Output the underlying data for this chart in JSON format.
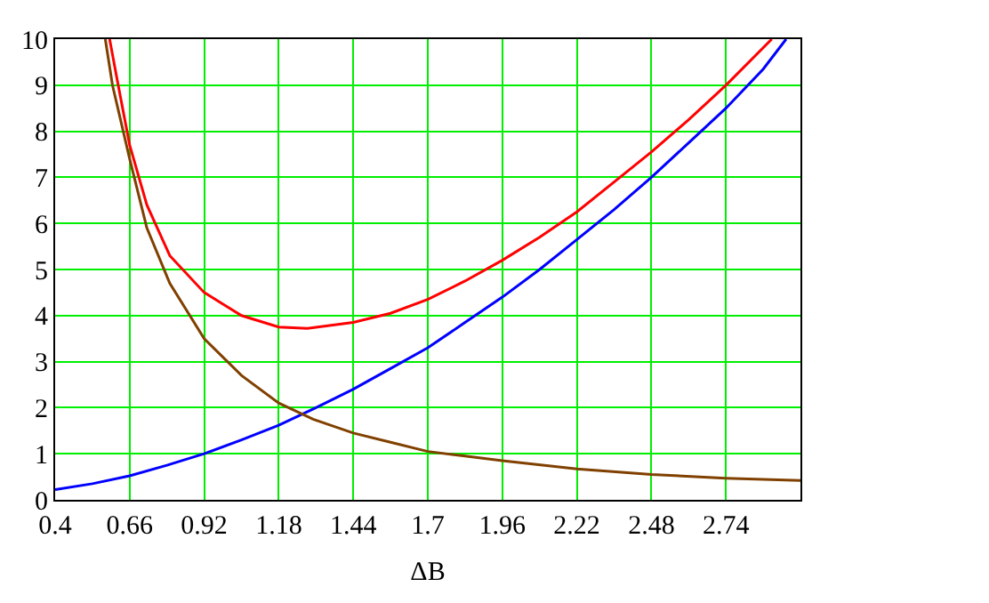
{
  "chart_data": {
    "type": "line",
    "xlabel": "ΔB",
    "xlim": [
      0.4,
      3.0
    ],
    "xticks": [
      0.4,
      0.66,
      0.92,
      1.18,
      1.44,
      1.7,
      1.96,
      2.22,
      2.48,
      2.74
    ],
    "ylim": [
      0,
      10
    ],
    "yticks": [
      0,
      1,
      2,
      3,
      4,
      5,
      6,
      7,
      8,
      9,
      10
    ],
    "grid": true,
    "marker": "none",
    "line_style": "solid",
    "series": [
      {
        "color": "#0000ff",
        "x": [
          0.4,
          0.53,
          0.66,
          0.79,
          0.92,
          1.05,
          1.18,
          1.31,
          1.44,
          1.57,
          1.7,
          1.83,
          1.96,
          2.09,
          2.22,
          2.35,
          2.48,
          2.61,
          2.74,
          2.87,
          2.95
        ],
        "values": [
          0.22,
          0.35,
          0.52,
          0.75,
          1.0,
          1.3,
          1.62,
          2.0,
          2.4,
          2.85,
          3.3,
          3.85,
          4.4,
          5.0,
          5.65,
          6.3,
          7.0,
          7.75,
          8.5,
          9.35,
          10
        ]
      },
      {
        "color": "#804000",
        "x": [
          0.575,
          0.6,
          0.66,
          0.72,
          0.8,
          0.92,
          1.05,
          1.18,
          1.3,
          1.44,
          1.57,
          1.7,
          1.83,
          1.96,
          2.22,
          2.48,
          2.74,
          3.0
        ],
        "values": [
          10,
          9,
          7.4,
          5.9,
          4.7,
          3.5,
          2.7,
          2.1,
          1.75,
          1.45,
          1.25,
          1.05,
          0.95,
          0.85,
          0.67,
          0.55,
          0.47,
          0.42
        ]
      },
      {
        "color": "#ff0000",
        "x": [
          0.59,
          0.62,
          0.66,
          0.72,
          0.8,
          0.92,
          1.05,
          1.18,
          1.28,
          1.44,
          1.57,
          1.7,
          1.83,
          1.96,
          2.09,
          2.22,
          2.35,
          2.48,
          2.61,
          2.74,
          2.9
        ],
        "values": [
          10,
          9,
          7.7,
          6.4,
          5.3,
          4.5,
          4.0,
          3.75,
          3.72,
          3.85,
          4.05,
          4.35,
          4.75,
          5.2,
          5.7,
          6.25,
          6.9,
          7.55,
          8.25,
          9.0,
          10
        ]
      }
    ]
  }
}
